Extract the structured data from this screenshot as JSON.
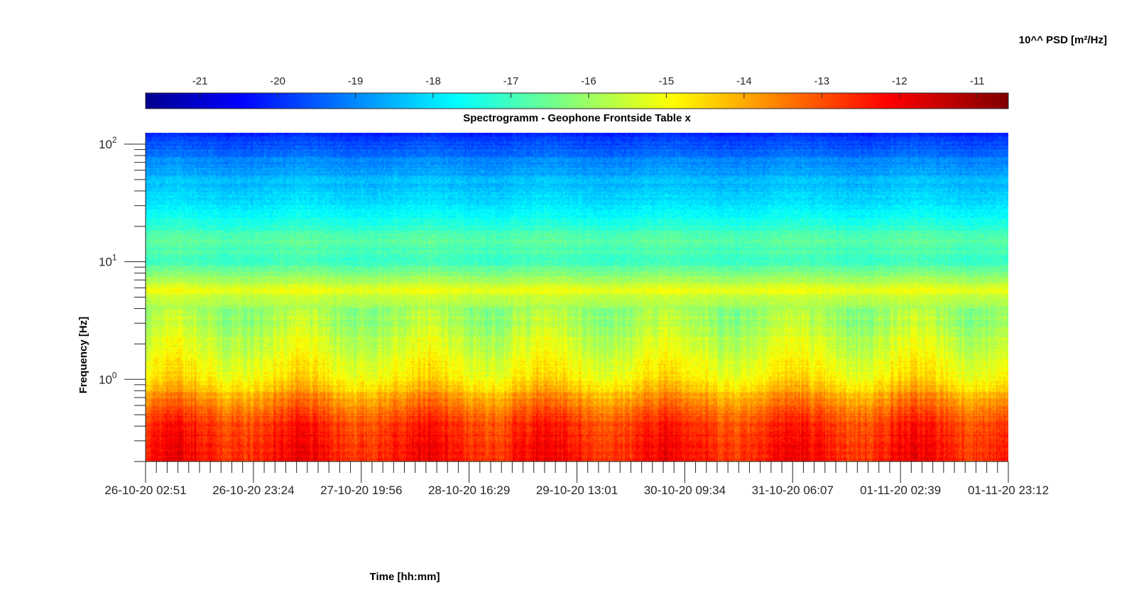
{
  "chart_data": {
    "type": "heatmap",
    "title": "Spectrogramm - Geophone Frontside Table x",
    "xlabel": "Time [hh:mm]",
    "ylabel": "Frequency [Hz]",
    "y_scale": "log",
    "ylim": [
      0.2,
      125
    ],
    "y_ticks": [
      {
        "value": 1,
        "base": "10",
        "exp": "0"
      },
      {
        "value": 10,
        "base": "10",
        "exp": "1"
      },
      {
        "value": 100,
        "base": "10",
        "exp": "2"
      }
    ],
    "x_ticks": [
      "26-10-20 02:51",
      "26-10-20 23:24",
      "27-10-20 19:56",
      "28-10-20 16:29",
      "29-10-20 13:01",
      "30-10-20 09:34",
      "31-10-20 06:07",
      "01-11-20 02:39",
      "01-11-20 23:12"
    ],
    "colorbar": {
      "title": "10^^ PSD [m²/Hz]",
      "range": [
        -21.7,
        -10.6
      ],
      "ticks": [
        "-21",
        "-20",
        "-19",
        "-18",
        "-17",
        "-16",
        "-15",
        "-14",
        "-13",
        "-12",
        "-11"
      ],
      "colormap": "jet"
    },
    "grid": false,
    "psd_profile": [
      {
        "freq_hz": 0.2,
        "log_psd": -12.2
      },
      {
        "freq_hz": 0.4,
        "log_psd": -12.4
      },
      {
        "freq_hz": 0.7,
        "log_psd": -13.6
      },
      {
        "freq_hz": 1.0,
        "log_psd": -14.6
      },
      {
        "freq_hz": 2.0,
        "log_psd": -15.3
      },
      {
        "freq_hz": 4.0,
        "log_psd": -15.9
      },
      {
        "freq_hz": 5.8,
        "log_psd": -15.0
      },
      {
        "freq_hz": 10,
        "log_psd": -16.9
      },
      {
        "freq_hz": 15,
        "log_psd": -16.5
      },
      {
        "freq_hz": 30,
        "log_psd": -17.8
      },
      {
        "freq_hz": 50,
        "log_psd": -18.3
      },
      {
        "freq_hz": 80,
        "log_psd": -19.0
      },
      {
        "freq_hz": 120,
        "log_psd": -19.9
      }
    ]
  }
}
